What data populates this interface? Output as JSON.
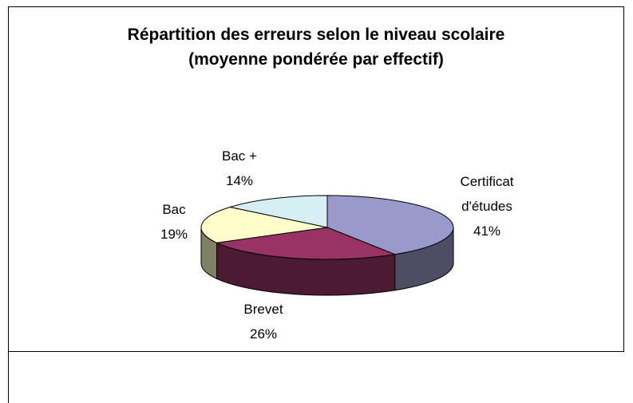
{
  "chart_data": {
    "type": "pie",
    "title": "Répartition des erreurs selon le niveau scolaire",
    "subtitle": "(moyenne pondérée par effectif)",
    "categories": [
      "Certificat d'études",
      "Brevet",
      "Bac",
      "Bac +"
    ],
    "values": [
      41,
      26,
      19,
      14
    ],
    "value_labels": [
      "41%",
      "26%",
      "19%",
      "14%"
    ],
    "colors": [
      "#9999cc",
      "#993366",
      "#ffffcc",
      "#d6eff5"
    ]
  }
}
